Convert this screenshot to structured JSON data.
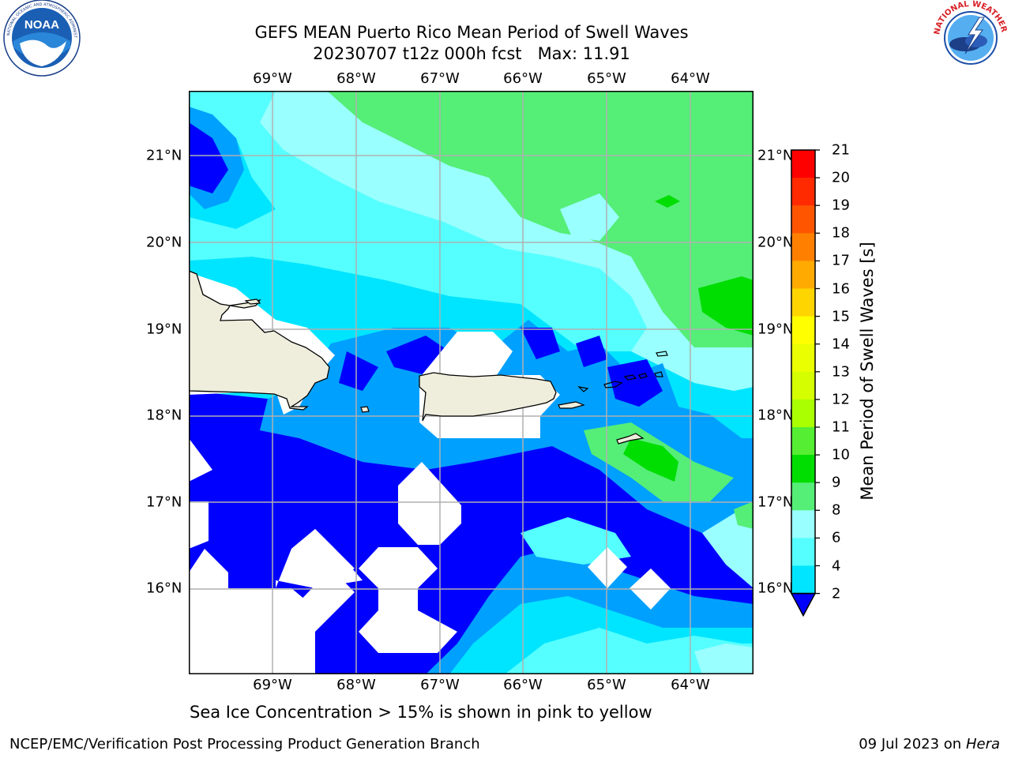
{
  "header": {
    "title_line1": "GEFS MEAN Puerto Rico Mean Period of Swell Waves",
    "title_line2": "20230707 t12z 000h fcst   Max: 11.91"
  },
  "logos": {
    "left": "noaa-logo",
    "left_text": "NOAA",
    "left_ring_text": "NATIONAL OCEANIC AND ATMOSPHERIC ADMINISTRATION · U.S. DEPARTMENT OF COMMERCE",
    "right": "nws-logo",
    "right_ring_text": "NATIONAL WEATHER SERVICE"
  },
  "map": {
    "lon_labels": [
      "69°W",
      "68°W",
      "67°W",
      "66°W",
      "65°W",
      "64°W"
    ],
    "lat_labels": [
      "21°N",
      "20°N",
      "19°N",
      "18°N",
      "17°N",
      "16°N"
    ],
    "gridlines": true
  },
  "colorbar": {
    "label": "Mean Period of Swell Waves [s]",
    "ticks": [
      "21",
      "20",
      "19",
      "18",
      "17",
      "16",
      "15",
      "14",
      "13",
      "12",
      "11",
      "10",
      "9",
      "8",
      "6",
      "4",
      "2"
    ],
    "colors": [
      "#ff0000",
      "#ff2a00",
      "#ff5500",
      "#ff8000",
      "#ffaa00",
      "#ffd500",
      "#ffff00",
      "#eaff00",
      "#d5ff00",
      "#aaff00",
      "#55ee33",
      "#00dd00",
      "#55ee77",
      "#99ffff",
      "#55ffff",
      "#00e5ff",
      "#00a0ff",
      "#0060ff",
      "#0000ff"
    ]
  },
  "footer": {
    "note": "Sea Ice Concentration > 15% is shown in pink to yellow",
    "left": "NCEP/EMC/Verification Post Processing Product Generation Branch",
    "right_prefix": "09 Jul 2023 on ",
    "right_host": "Hera"
  }
}
